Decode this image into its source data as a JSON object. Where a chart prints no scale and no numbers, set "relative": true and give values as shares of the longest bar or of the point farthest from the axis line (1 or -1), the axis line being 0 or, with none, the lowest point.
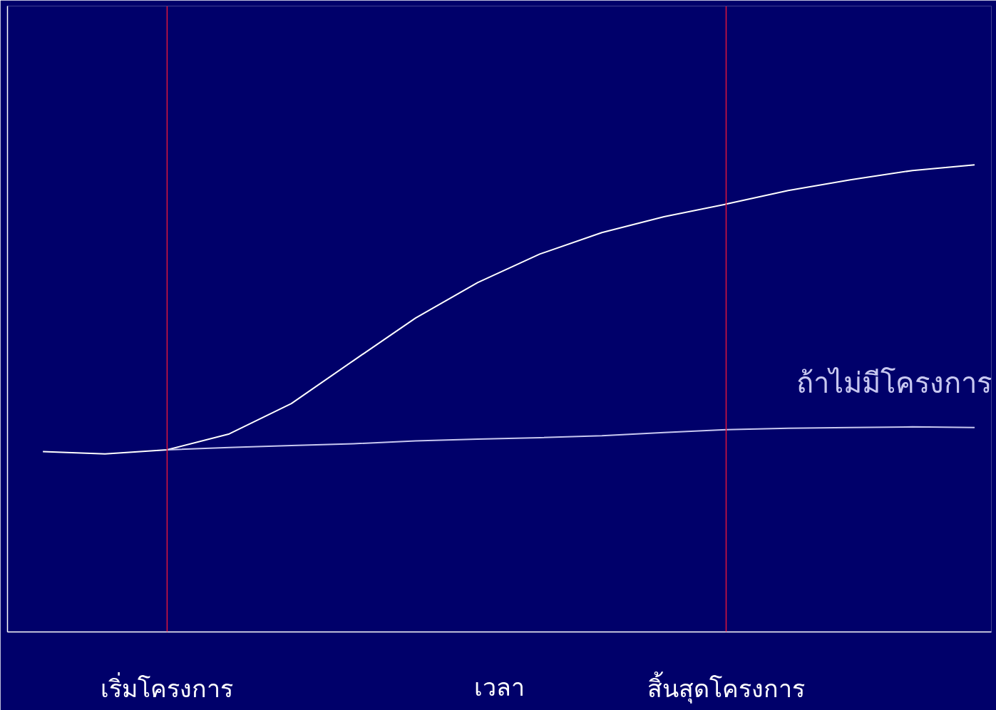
{
  "chart_data": {
    "type": "line",
    "relative": true,
    "xlabel": "เวลา",
    "grid": false,
    "categories": [
      null,
      null,
      "เริ่มโครงการ",
      null,
      null,
      null,
      null,
      null,
      null,
      null,
      null,
      "สิ้นสุดโครงการ",
      null,
      null,
      null,
      null
    ],
    "series": [
      {
        "color": "#ffffff",
        "values": [
          0.386,
          0.381,
          0.39,
          0.424,
          0.489,
          0.581,
          0.672,
          0.748,
          0.809,
          0.855,
          0.889,
          0.916,
          0.945,
          0.968,
          0.988,
          1.0
        ]
      },
      {
        "name": "ถ้าไม่มีโครงการ",
        "color": "#c8c8f0",
        "values": [
          null,
          null,
          0.39,
          0.395,
          0.399,
          0.403,
          0.409,
          0.413,
          0.416,
          0.42,
          0.427,
          0.433,
          0.436,
          0.4375,
          0.439,
          0.4375
        ]
      }
    ],
    "ref_lines": [
      {
        "axis": "x",
        "value": "เริ่มโครงการ",
        "color": "#dc143c"
      },
      {
        "axis": "x",
        "value": "สิ้นสุดโครงการ",
        "color": "#dc143c"
      }
    ]
  }
}
